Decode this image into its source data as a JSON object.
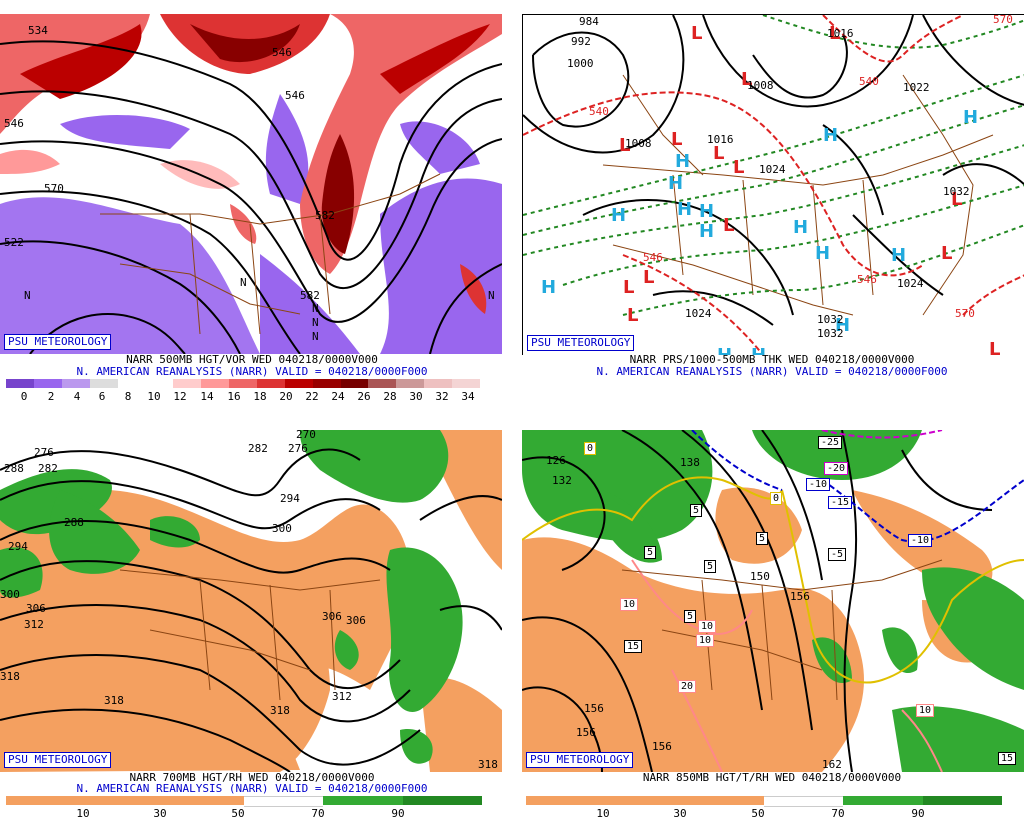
{
  "panels": [
    {
      "label": "PSU METEOROLOGY",
      "caption1": "NARR 500MB HGT/VOR WED 040218/0000V000",
      "caption2": "N. AMERICAN REANALYSIS (NARR) VALID = 040218/0000F000",
      "scale_ticks": [
        "0",
        "2",
        "4",
        "6",
        "8",
        "10",
        "12",
        "14",
        "16",
        "18",
        "20",
        "22",
        "24",
        "26",
        "28",
        "30",
        "32",
        "34"
      ],
      "contour_labels": [
        "534",
        "546",
        "546",
        "570",
        "582",
        "522",
        "546",
        "582"
      ],
      "vort_labels": [
        "N",
        "N",
        "N",
        "N",
        "N",
        "N"
      ]
    },
    {
      "label": "PSU METEOROLOGY",
      "caption1": "NARR PRS/1000-500MB THK WED 040218/0000V000",
      "caption2": "N. AMERICAN REANALYSIS (NARR) VALID = 040218/0000F000",
      "high_symbol": "H",
      "low_symbol": "L",
      "contour_labels": [
        "984",
        "992",
        "1000",
        "1016",
        "1008",
        "1022",
        "1008",
        "1016",
        "1024",
        "1032",
        "1024",
        "1032",
        "1024",
        "1032",
        "540",
        "570",
        "540",
        "546",
        "546",
        "570"
      ]
    },
    {
      "label": "PSU METEOROLOGY",
      "caption1": "NARR 700MB HGT/RH WED 040218/0000V000",
      "caption2": "N. AMERICAN REANALYSIS (NARR) VALID = 040218/0000F000",
      "scale_ticks": [
        "10",
        "30",
        "50",
        "70",
        "90"
      ],
      "contour_labels": [
        "276",
        "270",
        "288",
        "282",
        "282",
        "276",
        "294",
        "288",
        "294",
        "300",
        "306",
        "312",
        "318",
        "318",
        "312",
        "318",
        "306",
        "300",
        "306",
        "318"
      ]
    },
    {
      "label": "PSU METEOROLOGY",
      "caption1": "NARR 850MB HGT/T/RH WED 040218/0000V000",
      "caption2": "",
      "scale_ticks": [
        "10",
        "30",
        "50",
        "70",
        "90"
      ],
      "contour_labels": [
        "126",
        "132",
        "138",
        "150",
        "156",
        "156",
        "156",
        "162",
        "156"
      ],
      "temp_labels": [
        "-25",
        "-20",
        "-10",
        "-15",
        "-10",
        "-5",
        "5",
        "5",
        "5",
        "5",
        "5",
        "10",
        "10",
        "10",
        "15",
        "20",
        "10",
        "15",
        "0",
        "0"
      ]
    }
  ],
  "colors": {
    "vort_neg": "#9966ee",
    "vort_pos": [
      "#ffbbbb",
      "#ff9999",
      "#ee6666",
      "#dd3333",
      "#bb0000",
      "#880000",
      "#aa5555",
      "#cc9999",
      "#eec0c0"
    ],
    "rh_dry": "#f4a060",
    "rh_moist": "#33aa33",
    "border": "#8b4513",
    "label_box": "#0000cc",
    "low": "#dd2222",
    "high": "#22aadd"
  }
}
